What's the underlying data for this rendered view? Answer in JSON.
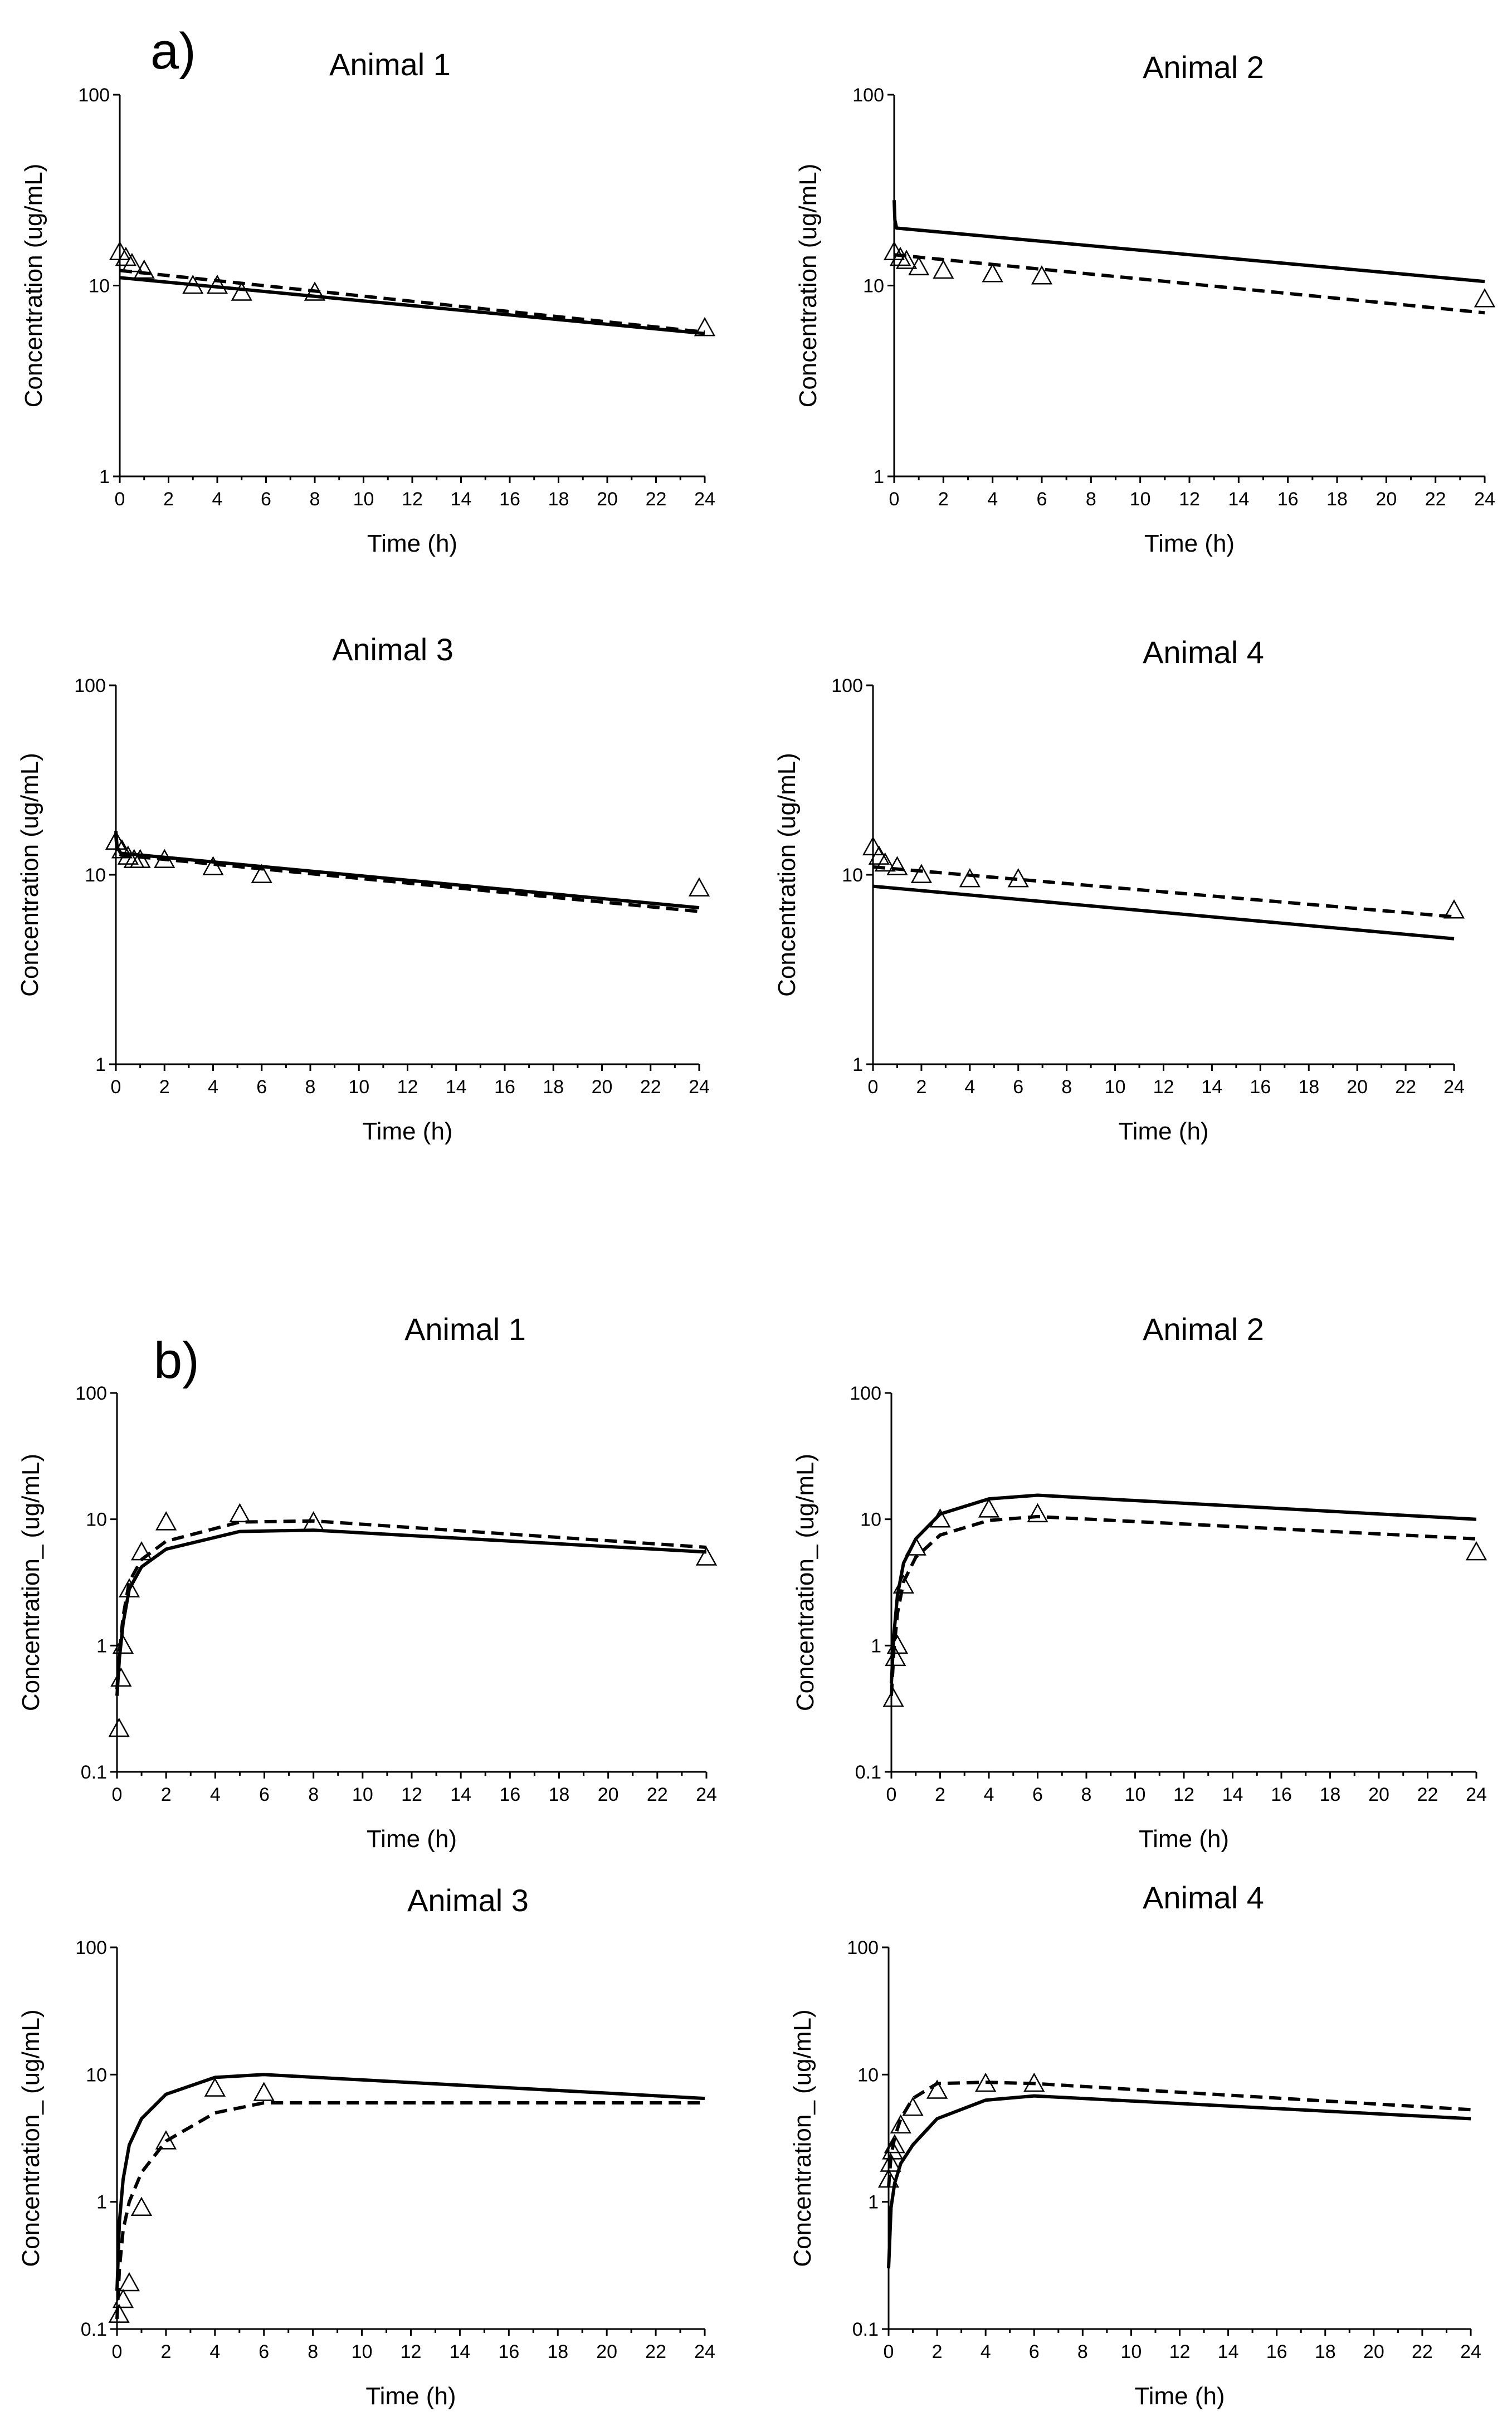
{
  "panels": {
    "a_label": "a)",
    "b_label": "b)"
  },
  "chart_data": [
    {
      "type": "line",
      "scale": "log",
      "panel": "a",
      "title": "Animal 1",
      "xlabel": "Time (h)",
      "ylabel": "Concentration (ug/mL)",
      "xlim": [
        0,
        24
      ],
      "ylim": [
        1,
        100
      ],
      "xticks": [
        "0",
        "2",
        "4",
        "6",
        "8",
        "10",
        "12",
        "14",
        "16",
        "18",
        "20",
        "22",
        "24"
      ],
      "yticks": [
        "1",
        "10",
        "100"
      ],
      "series": [
        {
          "name": "solid",
          "style": "solid",
          "x": [
            0,
            24
          ],
          "y": [
            11,
            5.6
          ]
        },
        {
          "name": "dashed",
          "style": "dashed",
          "x": [
            0,
            24
          ],
          "y": [
            12,
            5.7
          ]
        },
        {
          "name": "observed",
          "style": "triangle",
          "x": [
            0,
            0.25,
            0.5,
            1,
            3,
            4,
            5,
            8,
            24
          ],
          "y": [
            15,
            14,
            13,
            12,
            10,
            10,
            9.2,
            9.2,
            6
          ]
        }
      ]
    },
    {
      "type": "line",
      "scale": "log",
      "panel": "a",
      "title": "Animal 2",
      "xlabel": "Time (h)",
      "ylabel": "Concentration (ug/mL)",
      "xlim": [
        0,
        24
      ],
      "ylim": [
        1,
        100
      ],
      "xticks": [
        "0",
        "2",
        "4",
        "6",
        "8",
        "10",
        "12",
        "14",
        "16",
        "18",
        "20",
        "22",
        "24"
      ],
      "yticks": [
        "1",
        "10",
        "100"
      ],
      "series": [
        {
          "name": "solid",
          "style": "solid",
          "x": [
            0,
            0.03,
            0.1,
            24
          ],
          "y": [
            28,
            22,
            20,
            10.5
          ]
        },
        {
          "name": "dashed",
          "style": "dashed",
          "x": [
            0,
            24
          ],
          "y": [
            14.5,
            7.2
          ]
        },
        {
          "name": "observed",
          "style": "triangle",
          "x": [
            0,
            0.25,
            0.5,
            1,
            2,
            4,
            6,
            24
          ],
          "y": [
            15,
            14,
            13.5,
            12.5,
            12,
            11.5,
            11.2,
            8.5
          ]
        }
      ]
    },
    {
      "type": "line",
      "scale": "log",
      "panel": "a",
      "title": "Animal 3",
      "xlabel": "Time (h)",
      "ylabel": "Concentration (ug/mL)",
      "xlim": [
        0,
        24
      ],
      "ylim": [
        1,
        100
      ],
      "xticks": [
        "0",
        "2",
        "4",
        "6",
        "8",
        "10",
        "12",
        "14",
        "16",
        "18",
        "20",
        "22",
        "24"
      ],
      "yticks": [
        "1",
        "10",
        "100"
      ],
      "series": [
        {
          "name": "solid",
          "style": "solid",
          "x": [
            0,
            0.05,
            0.2,
            24
          ],
          "y": [
            17,
            14,
            13,
            6.7
          ]
        },
        {
          "name": "dashed",
          "style": "dashed",
          "x": [
            0,
            0.05,
            0.2,
            24
          ],
          "y": [
            16,
            13.5,
            12.7,
            6.4
          ]
        },
        {
          "name": "observed",
          "style": "triangle",
          "x": [
            0,
            0.25,
            0.5,
            0.75,
            1,
            2,
            4,
            6,
            24
          ],
          "y": [
            15,
            13.5,
            12.5,
            12,
            12,
            12,
            11,
            10,
            8.5
          ]
        }
      ]
    },
    {
      "type": "line",
      "scale": "log",
      "panel": "a",
      "title": "Animal 4",
      "xlabel": "Time (h)",
      "ylabel": "Concentration (ug/mL)",
      "xlim": [
        0,
        24
      ],
      "ylim": [
        1,
        100
      ],
      "xticks": [
        "0",
        "2",
        "4",
        "6",
        "8",
        "10",
        "12",
        "14",
        "16",
        "18",
        "20",
        "22",
        "24"
      ],
      "yticks": [
        "1",
        "10",
        "100"
      ],
      "series": [
        {
          "name": "solid",
          "style": "solid",
          "x": [
            0,
            24
          ],
          "y": [
            8.7,
            4.6
          ]
        },
        {
          "name": "dashed",
          "style": "dashed",
          "x": [
            0,
            24
          ],
          "y": [
            11,
            6
          ]
        },
        {
          "name": "observed",
          "style": "triangle",
          "x": [
            0,
            0.25,
            0.5,
            1,
            2,
            4,
            6,
            24
          ],
          "y": [
            14,
            12.5,
            11.5,
            11,
            10,
            9.5,
            9.5,
            6.5
          ]
        }
      ]
    },
    {
      "type": "line",
      "scale": "log",
      "panel": "b",
      "title": "Animal 1",
      "xlabel": "Time (h)",
      "ylabel": "Concentration_ (ug/mL)",
      "xlim": [
        0,
        24
      ],
      "ylim": [
        0.1,
        100
      ],
      "xticks": [
        "0",
        "2",
        "4",
        "6",
        "8",
        "10",
        "12",
        "14",
        "16",
        "18",
        "20",
        "22",
        "24"
      ],
      "yticks": [
        "0.1",
        "1",
        "10",
        "100"
      ],
      "series": [
        {
          "name": "solid",
          "style": "solid",
          "x": [
            0,
            0.1,
            0.25,
            0.5,
            1,
            2,
            5,
            8,
            24
          ],
          "y": [
            0.4,
            0.8,
            1.5,
            2.8,
            4.2,
            5.8,
            8,
            8.2,
            5.5
          ]
        },
        {
          "name": "dashed",
          "style": "dashed",
          "x": [
            0,
            0.1,
            0.25,
            0.5,
            1,
            2,
            5,
            8,
            24
          ],
          "y": [
            0.45,
            0.9,
            1.7,
            3.2,
            4.8,
            6.7,
            9.5,
            9.7,
            6
          ]
        },
        {
          "name": "observed",
          "style": "triangle",
          "x": [
            0.083,
            0.167,
            0.25,
            0.5,
            1,
            2,
            5,
            8,
            24
          ],
          "y": [
            0.22,
            0.55,
            1,
            2.8,
            5.5,
            9.5,
            11,
            9.5,
            5
          ]
        }
      ]
    },
    {
      "type": "line",
      "scale": "log",
      "panel": "b",
      "title": "Animal 2",
      "xlabel": "Time (h)",
      "ylabel": "Concentration_ (ug/mL)",
      "xlim": [
        0,
        24
      ],
      "ylim": [
        0.1,
        100
      ],
      "xticks": [
        "0",
        "2",
        "4",
        "6",
        "8",
        "10",
        "12",
        "14",
        "16",
        "18",
        "20",
        "22",
        "24"
      ],
      "yticks": [
        "0.1",
        "1",
        "10",
        "100"
      ],
      "series": [
        {
          "name": "solid",
          "style": "solid",
          "x": [
            0,
            0.1,
            0.25,
            0.5,
            1,
            2,
            4,
            6,
            24
          ],
          "y": [
            0.5,
            1.2,
            2.5,
            4.5,
            7,
            11,
            14.5,
            15.5,
            10
          ]
        },
        {
          "name": "dashed",
          "style": "dashed",
          "x": [
            0,
            0.1,
            0.25,
            0.5,
            1,
            2,
            4,
            6,
            24
          ],
          "y": [
            0.4,
            0.9,
            1.8,
            3.2,
            5,
            7.5,
            9.8,
            10.5,
            7
          ]
        },
        {
          "name": "observed",
          "style": "triangle",
          "x": [
            0.083,
            0.167,
            0.25,
            0.5,
            1,
            2,
            4,
            6,
            24
          ],
          "y": [
            0.38,
            0.8,
            1,
            3,
            6,
            10,
            12,
            11,
            5.5
          ]
        }
      ]
    },
    {
      "type": "line",
      "scale": "log",
      "panel": "b",
      "title": "Animal 3",
      "xlabel": "Time (h)",
      "ylabel": "Concentration_ (ug/mL)",
      "xlim": [
        0,
        24
      ],
      "ylim": [
        0.1,
        100
      ],
      "xticks": [
        "0",
        "2",
        "4",
        "6",
        "8",
        "10",
        "12",
        "14",
        "16",
        "18",
        "20",
        "22",
        "24"
      ],
      "yticks": [
        "0.1",
        "1",
        "10",
        "100"
      ],
      "series": [
        {
          "name": "solid",
          "style": "solid",
          "x": [
            0,
            0.1,
            0.25,
            0.5,
            1,
            2,
            4,
            6,
            24
          ],
          "y": [
            0.2,
            0.7,
            1.5,
            2.8,
            4.5,
            7,
            9.5,
            10,
            6.5
          ]
        },
        {
          "name": "dashed",
          "style": "dashed",
          "x": [
            0,
            0.1,
            0.25,
            0.5,
            1,
            2,
            4,
            6,
            24
          ],
          "y": [
            0.12,
            0.3,
            0.6,
            1,
            1.7,
            3,
            5,
            6,
            6
          ]
        },
        {
          "name": "observed",
          "style": "triangle",
          "x": [
            0.083,
            0.25,
            0.5,
            1,
            2,
            4,
            6
          ],
          "y": [
            0.13,
            0.17,
            0.23,
            0.9,
            3,
            7.8,
            7.2
          ]
        }
      ]
    },
    {
      "type": "line",
      "scale": "log",
      "panel": "b",
      "title": "Animal 4",
      "xlabel": "Time (h)",
      "ylabel": "Concentration_ (ug/mL)",
      "xlim": [
        0,
        24
      ],
      "ylim": [
        0.1,
        100
      ],
      "xticks": [
        "0",
        "2",
        "4",
        "6",
        "8",
        "10",
        "12",
        "14",
        "16",
        "18",
        "20",
        "22",
        "24"
      ],
      "yticks": [
        "0.1",
        "1",
        "10",
        "100"
      ],
      "series": [
        {
          "name": "solid",
          "style": "solid",
          "x": [
            0,
            0.1,
            0.25,
            0.5,
            1,
            2,
            4,
            6,
            24
          ],
          "y": [
            0.3,
            0.9,
            1.4,
            2,
            2.8,
            4.5,
            6.3,
            6.8,
            4.5
          ]
        },
        {
          "name": "dashed",
          "style": "dashed",
          "x": [
            0,
            0.1,
            0.25,
            0.5,
            1,
            2,
            4,
            6,
            24
          ],
          "y": [
            1.3,
            2.3,
            3.2,
            4.5,
            6.5,
            8.5,
            8.7,
            8.5,
            5.3
          ]
        },
        {
          "name": "observed",
          "style": "triangle",
          "x": [
            0,
            0.083,
            0.167,
            0.25,
            0.5,
            1,
            2,
            4,
            6
          ],
          "y": [
            1.5,
            2,
            2.5,
            2.8,
            4,
            5.5,
            7.5,
            8.5,
            8.5
          ]
        }
      ]
    }
  ]
}
